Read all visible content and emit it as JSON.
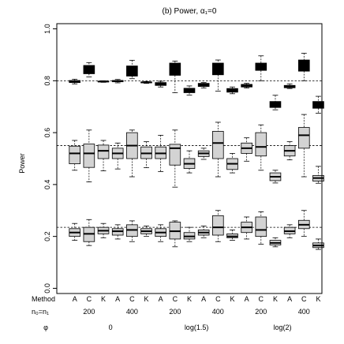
{
  "chart_data": {
    "type": "box",
    "title": "(b) Power, α₁=0",
    "ylabel": "Power",
    "xlabel": "",
    "ylim": [
      -0.02,
      1.02
    ],
    "yticks": [
      "0.0",
      "0.2",
      "0.4",
      "0.6",
      "0.8",
      "1.0"
    ],
    "reference_lines": [
      0.8,
      0.55,
      0.235
    ],
    "row_labels": {
      "method": "Method",
      "n": "n₀=n₁",
      "phi": "φ"
    },
    "categories": [
      "A",
      "C",
      "K",
      "A",
      "C",
      "K",
      "A",
      "C",
      "K",
      "A",
      "C",
      "K",
      "A",
      "C",
      "K",
      "A",
      "C",
      "K"
    ],
    "n_labels": [
      {
        "label": "200",
        "at": 2
      },
      {
        "label": "400",
        "at": 5
      },
      {
        "label": "200",
        "at": 8
      },
      {
        "label": "400",
        "at": 11
      },
      {
        "label": "200",
        "at": 14
      },
      {
        "label": "400",
        "at": 17
      }
    ],
    "phi_labels": [
      {
        "label": "0",
        "at": 3.5
      },
      {
        "label": "log(1.5)",
        "at": 9.5
      },
      {
        "label": "log(2)",
        "at": 15.5
      }
    ],
    "groups": [
      {
        "name": "",
        "fill": "#000000",
        "median_color": "#000000",
        "boxes": [
          [
            0.788,
            0.793,
            0.797,
            0.801,
            0.806
          ],
          [
            0.815,
            0.827,
            0.85,
            0.859,
            0.87
          ],
          [
            0.794,
            0.796,
            0.797,
            0.798,
            0.8
          ],
          [
            0.792,
            0.796,
            0.799,
            0.801,
            0.805
          ],
          [
            0.808,
            0.818,
            0.84,
            0.857,
            0.879
          ],
          [
            0.79,
            0.792,
            0.794,
            0.795,
            0.797
          ],
          [
            0.776,
            0.782,
            0.787,
            0.793,
            0.798
          ],
          [
            0.754,
            0.821,
            0.845,
            0.868,
            0.876
          ],
          [
            0.745,
            0.754,
            0.763,
            0.771,
            0.78
          ],
          [
            0.772,
            0.778,
            0.784,
            0.79,
            0.793
          ],
          [
            0.76,
            0.823,
            0.848,
            0.868,
            0.88
          ],
          [
            0.75,
            0.756,
            0.763,
            0.77,
            0.776
          ],
          [
            0.772,
            0.776,
            0.782,
            0.786,
            0.79
          ],
          [
            0.8,
            0.84,
            0.858,
            0.868,
            0.896
          ],
          [
            0.688,
            0.697,
            0.708,
            0.72,
            0.744
          ],
          [
            0.77,
            0.773,
            0.777,
            0.782,
            0.788
          ],
          [
            0.8,
            0.837,
            0.865,
            0.88,
            0.906
          ],
          [
            0.675,
            0.694,
            0.708,
            0.72,
            0.74
          ]
        ]
      },
      {
        "name": "",
        "fill": "#d3d3d3",
        "median_color": "#000000",
        "boxes": [
          [
            0.455,
            0.48,
            0.52,
            0.548,
            0.57
          ],
          [
            0.41,
            0.466,
            0.52,
            0.556,
            0.61
          ],
          [
            0.453,
            0.5,
            0.53,
            0.552,
            0.57
          ],
          [
            0.46,
            0.5,
            0.52,
            0.54,
            0.56
          ],
          [
            0.43,
            0.5,
            0.55,
            0.6,
            0.61
          ],
          [
            0.465,
            0.5,
            0.52,
            0.545,
            0.565
          ],
          [
            0.45,
            0.5,
            0.52,
            0.545,
            0.59
          ],
          [
            0.39,
            0.475,
            0.54,
            0.555,
            0.61
          ],
          [
            0.445,
            0.462,
            0.48,
            0.5,
            0.53
          ],
          [
            0.497,
            0.508,
            0.52,
            0.53,
            0.54
          ],
          [
            0.43,
            0.5,
            0.56,
            0.605,
            0.64
          ],
          [
            0.445,
            0.458,
            0.48,
            0.5,
            0.52
          ],
          [
            0.49,
            0.52,
            0.54,
            0.56,
            0.58
          ],
          [
            0.455,
            0.51,
            0.545,
            0.6,
            0.63
          ],
          [
            0.406,
            0.415,
            0.43,
            0.445,
            0.455
          ],
          [
            0.495,
            0.51,
            0.53,
            0.55,
            0.565
          ],
          [
            0.43,
            0.54,
            0.59,
            0.62,
            0.67
          ],
          [
            0.405,
            0.413,
            0.425,
            0.435,
            0.47
          ]
        ]
      },
      {
        "name": "",
        "fill": "#d3d3d3",
        "median_color": "#000000",
        "boxes": [
          [
            0.185,
            0.2,
            0.215,
            0.23,
            0.25
          ],
          [
            0.165,
            0.18,
            0.21,
            0.235,
            0.265
          ],
          [
            0.195,
            0.21,
            0.222,
            0.235,
            0.25
          ],
          [
            0.19,
            0.205,
            0.22,
            0.23,
            0.245
          ],
          [
            0.18,
            0.2,
            0.225,
            0.245,
            0.26
          ],
          [
            0.2,
            0.21,
            0.22,
            0.23,
            0.24
          ],
          [
            0.18,
            0.2,
            0.215,
            0.23,
            0.245
          ],
          [
            0.16,
            0.19,
            0.22,
            0.255,
            0.26
          ],
          [
            0.18,
            0.19,
            0.2,
            0.215,
            0.235
          ],
          [
            0.195,
            0.205,
            0.215,
            0.225,
            0.24
          ],
          [
            0.18,
            0.205,
            0.235,
            0.28,
            0.3
          ],
          [
            0.185,
            0.195,
            0.2,
            0.21,
            0.225
          ],
          [
            0.19,
            0.215,
            0.235,
            0.255,
            0.275
          ],
          [
            0.17,
            0.2,
            0.225,
            0.275,
            0.295
          ],
          [
            0.16,
            0.167,
            0.175,
            0.185,
            0.195
          ],
          [
            0.195,
            0.21,
            0.22,
            0.235,
            0.245
          ],
          [
            0.2,
            0.23,
            0.245,
            0.262,
            0.3
          ],
          [
            0.15,
            0.157,
            0.165,
            0.175,
            0.19
          ]
        ]
      }
    ]
  }
}
